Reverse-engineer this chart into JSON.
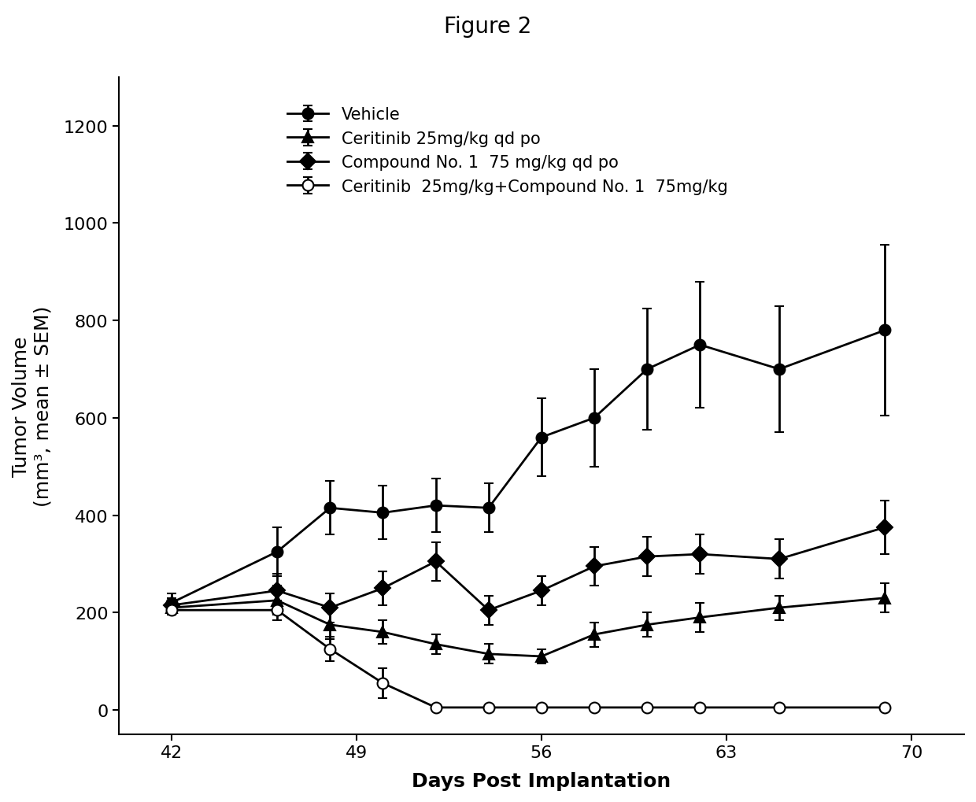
{
  "title": "Figure 2",
  "xlabel": "Days Post Implantation",
  "ylabel": "Tumor Volume\n(mm³, mean ± SEM)",
  "xlim": [
    40,
    72
  ],
  "ylim": [
    -50,
    1300
  ],
  "xticks": [
    42,
    49,
    56,
    63,
    70
  ],
  "yticks": [
    0,
    200,
    400,
    600,
    800,
    1000,
    1200
  ],
  "series": [
    {
      "label": "Vehicle",
      "color": "#000000",
      "marker": "o",
      "marker_filled": true,
      "x": [
        42,
        46,
        48,
        50,
        52,
        54,
        56,
        58,
        60,
        62,
        65,
        69
      ],
      "y": [
        220,
        325,
        415,
        405,
        420,
        415,
        560,
        600,
        700,
        750,
        700,
        780
      ],
      "yerr": [
        20,
        50,
        55,
        55,
        55,
        50,
        80,
        100,
        125,
        130,
        130,
        175
      ]
    },
    {
      "label": "Ceritinib 25mg/kg qd po",
      "color": "#000000",
      "marker": "^",
      "marker_filled": true,
      "x": [
        42,
        46,
        48,
        50,
        52,
        54,
        56,
        58,
        60,
        62,
        65,
        69
      ],
      "y": [
        210,
        225,
        175,
        160,
        135,
        115,
        110,
        155,
        175,
        190,
        210,
        230
      ],
      "yerr": [
        15,
        30,
        30,
        25,
        20,
        20,
        15,
        25,
        25,
        30,
        25,
        30
      ]
    },
    {
      "label": "Compound No. 1  75 mg/kg qd po",
      "color": "#000000",
      "marker": "D",
      "marker_filled": true,
      "x": [
        42,
        46,
        48,
        50,
        52,
        54,
        56,
        58,
        60,
        62,
        65,
        69
      ],
      "y": [
        215,
        245,
        210,
        250,
        305,
        205,
        245,
        295,
        315,
        320,
        310,
        375
      ],
      "yerr": [
        15,
        35,
        30,
        35,
        40,
        30,
        30,
        40,
        40,
        40,
        40,
        55
      ]
    },
    {
      "label": "Ceritinib  25mg/kg+Compound No. 1  75mg/kg",
      "color": "#000000",
      "marker": "o",
      "marker_filled": false,
      "x": [
        42,
        46,
        48,
        50,
        52,
        54,
        56,
        58,
        60,
        62,
        65,
        69
      ],
      "y": [
        205,
        205,
        125,
        55,
        5,
        5,
        5,
        5,
        5,
        5,
        5,
        5
      ],
      "yerr": [
        10,
        20,
        25,
        30,
        5,
        5,
        5,
        5,
        5,
        5,
        5,
        5
      ]
    }
  ],
  "background_color": "#ffffff",
  "title_fontsize": 20,
  "label_fontsize": 18,
  "tick_fontsize": 16,
  "legend_fontsize": 15,
  "linewidth": 2.0,
  "markersize": 10,
  "capsize": 4
}
